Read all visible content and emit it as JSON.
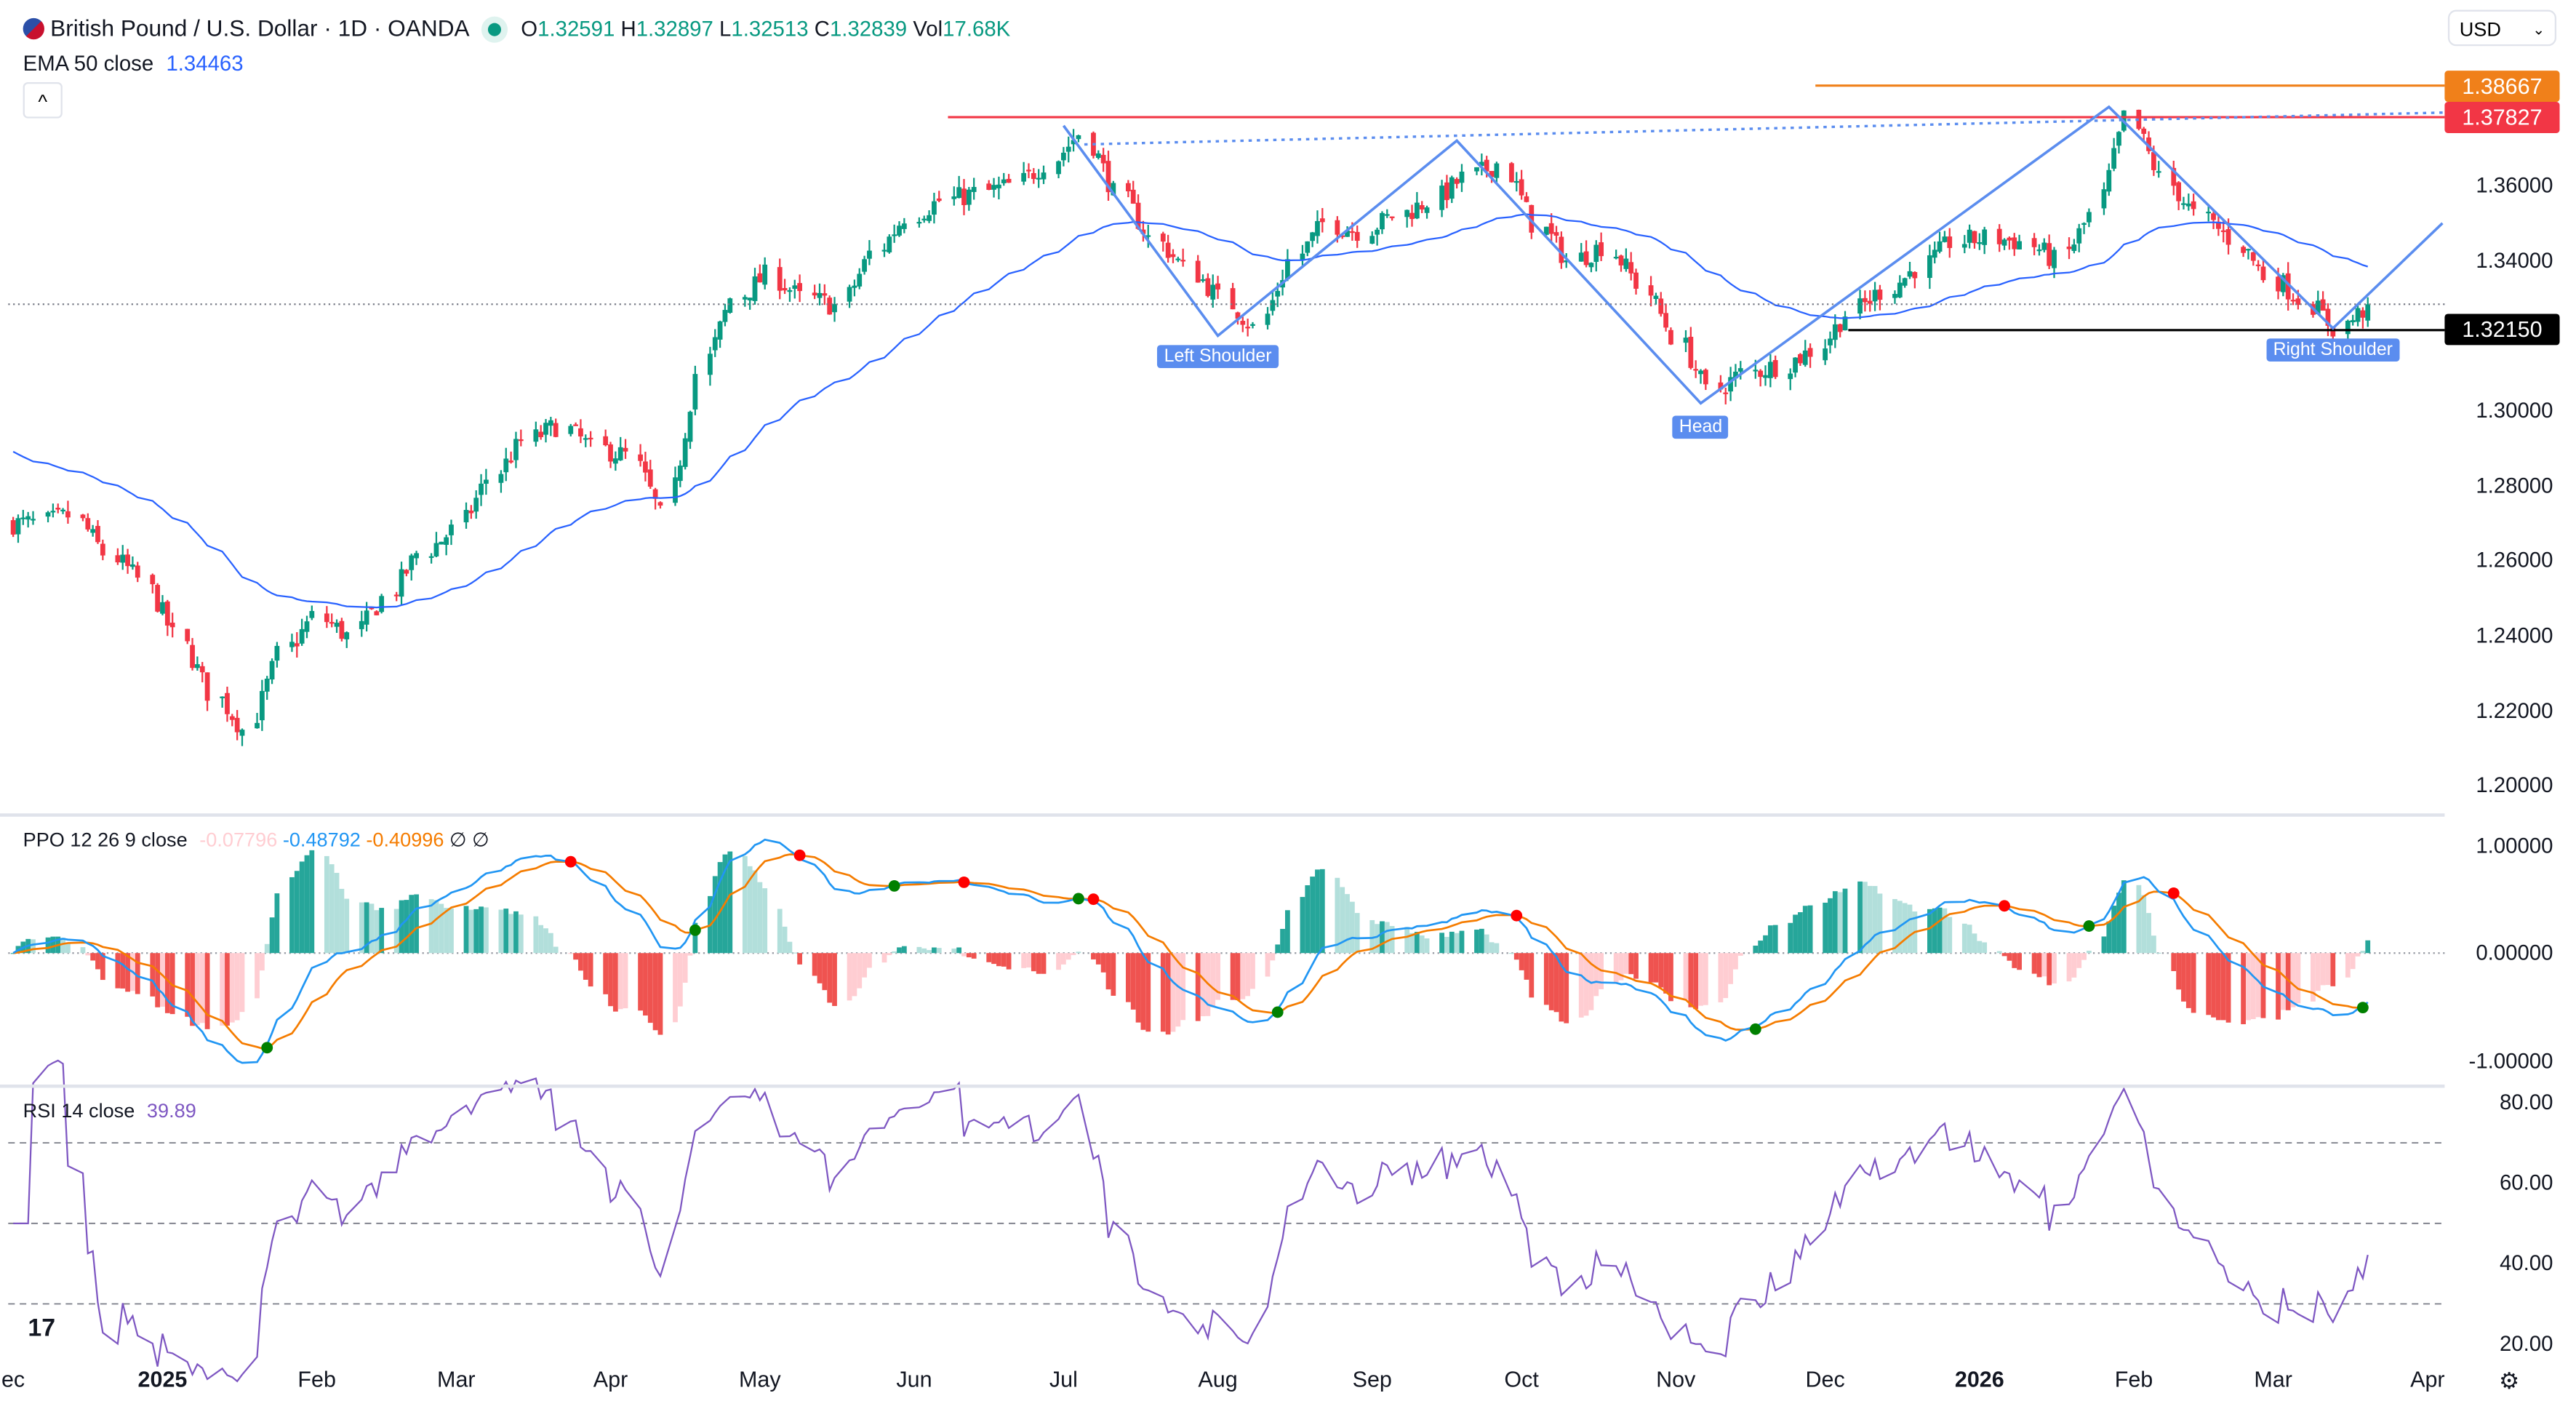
{
  "header": {
    "symbol_title": "British Pound / U.S. Dollar · 1D · OANDA",
    "ohlc": {
      "o_label": "O",
      "o": "1.32591",
      "h_label": "H",
      "h": "1.32897",
      "l_label": "L",
      "l": "1.32513",
      "c_label": "C",
      "c": "1.32839",
      "vol_label": "Vol",
      "vol": "17.68K"
    },
    "ema_label": "EMA 50 close",
    "ema_value": "1.34463",
    "collapse_icon": "^",
    "currency_select": "USD"
  },
  "price_axis": {
    "ticks": [
      "1.36000",
      "1.34000",
      "1.30000",
      "1.28000",
      "1.26000",
      "1.24000",
      "1.22000",
      "1.20000"
    ],
    "tick_values": [
      1.36,
      1.34,
      1.3,
      1.28,
      1.26,
      1.24,
      1.22,
      1.2
    ]
  },
  "levels": [
    {
      "label": "1.38667",
      "value": 1.38667,
      "color": "#f0801a"
    },
    {
      "label": "1.37827",
      "value": 1.37827,
      "color": "#f23645"
    },
    {
      "label": "1.32150",
      "value": 1.3215,
      "color": "#000000"
    }
  ],
  "pattern_labels": {
    "left": "Left Shoulder",
    "head": "Head",
    "right": "Right Shoulder"
  },
  "pattern_points": [
    [
      "2025-07-01",
      1.376
    ],
    [
      "2025-08-01",
      1.32
    ],
    [
      "2025-09-18",
      1.372
    ],
    [
      "2025-11-06",
      1.302
    ],
    [
      "2026-01-27",
      1.381
    ],
    [
      "2026-03-13",
      1.322
    ],
    [
      "2026-04-04",
      1.35
    ]
  ],
  "ppo": {
    "label": "PPO 12 26 9 close",
    "hist": "-0.07796",
    "ppo": "-0.48792",
    "signal": "-0.40996",
    "extra": "∅ ∅",
    "ticks": [
      "1.00000",
      "0.00000",
      "-1.00000"
    ],
    "tick_values": [
      1,
      0,
      -1
    ]
  },
  "rsi": {
    "label": "RSI 14 close",
    "value": "39.89",
    "ticks": [
      "80.00",
      "60.00",
      "40.00",
      "20.00"
    ],
    "tick_values": [
      80,
      60,
      40,
      20
    ],
    "bands": [
      70,
      50,
      30
    ]
  },
  "x_axis": [
    {
      "label": "ec",
      "date": "2024-12-01"
    },
    {
      "label": "2025",
      "date": "2025-01-01",
      "bold": true
    },
    {
      "label": "Feb",
      "date": "2025-02-01"
    },
    {
      "label": "Mar",
      "date": "2025-03-01"
    },
    {
      "label": "Apr",
      "date": "2025-04-01"
    },
    {
      "label": "May",
      "date": "2025-05-01"
    },
    {
      "label": "Jun",
      "date": "2025-06-01"
    },
    {
      "label": "Jul",
      "date": "2025-07-01"
    },
    {
      "label": "Aug",
      "date": "2025-08-01"
    },
    {
      "label": "Sep",
      "date": "2025-09-01"
    },
    {
      "label": "Oct",
      "date": "2025-10-01"
    },
    {
      "label": "Nov",
      "date": "2025-11-01"
    },
    {
      "label": "Dec",
      "date": "2025-12-01"
    },
    {
      "label": "2026",
      "date": "2026-01-01",
      "bold": true
    },
    {
      "label": "Feb",
      "date": "2026-02-01"
    },
    {
      "label": "Mar",
      "date": "2026-03-01"
    },
    {
      "label": "Apr",
      "date": "2026-04-01"
    }
  ],
  "colors": {
    "up": "#089981",
    "down": "#f23645",
    "ema": "#2962ff",
    "ppo": "#2196f3",
    "signal": "#f57c00",
    "rsi": "#7e57c2",
    "pattern": "#5b8def"
  },
  "chart_data": {
    "type": "candlestick",
    "frequency": "weekly closes (approx.)",
    "week_start_dates_from": "2024-12-02",
    "weekly_closes": [
      1.27,
      1.272,
      1.262,
      1.255,
      1.24,
      1.225,
      1.215,
      1.235,
      1.245,
      1.24,
      1.25,
      1.262,
      1.268,
      1.282,
      1.292,
      1.296,
      1.29,
      1.288,
      1.272,
      1.31,
      1.33,
      1.336,
      1.33,
      1.328,
      1.342,
      1.352,
      1.356,
      1.358,
      1.36,
      1.366,
      1.374,
      1.358,
      1.346,
      1.338,
      1.33,
      1.322,
      1.34,
      1.35,
      1.348,
      1.352,
      1.356,
      1.362,
      1.366,
      1.35,
      1.34,
      1.344,
      1.334,
      1.32,
      1.305,
      1.31,
      1.312,
      1.316,
      1.326,
      1.332,
      1.338,
      1.345,
      1.346,
      1.345,
      1.34,
      1.352,
      1.378,
      1.362,
      1.352,
      1.346,
      1.336,
      1.33,
      1.322,
      1.328
    ],
    "last_close": 1.32839,
    "ylim": [
      1.19,
      1.4
    ]
  }
}
